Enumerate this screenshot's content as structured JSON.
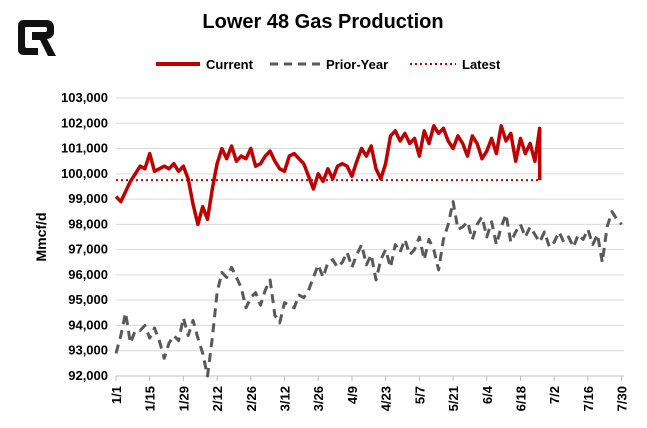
{
  "chart_data": {
    "type": "line",
    "title": "Lower 48 Gas Production",
    "ylabel": "Mmcf/d",
    "xlabel": "",
    "ylim": [
      92000,
      103000
    ],
    "yticks": [
      92000,
      93000,
      94000,
      95000,
      96000,
      97000,
      98000,
      99000,
      100000,
      101000,
      102000,
      103000
    ],
    "ytick_labels": [
      "92,000",
      "93,000",
      "94,000",
      "95,000",
      "96,000",
      "97,000",
      "98,000",
      "99,000",
      "100,000",
      "101,000",
      "102,000",
      "103,000"
    ],
    "xlim": [
      1,
      212
    ],
    "xtick_days": [
      1,
      15,
      29,
      43,
      57,
      71,
      85,
      99,
      113,
      127,
      141,
      155,
      169,
      183,
      197,
      211
    ],
    "xtick_labels": [
      "1/1",
      "1/15",
      "1/29",
      "2/12",
      "2/26",
      "3/12",
      "3/26",
      "4/9",
      "4/23",
      "5/7",
      "5/21",
      "6/4",
      "6/18",
      "7/2",
      "7/16",
      "7/30"
    ],
    "grid": true,
    "legend_position": "top",
    "series": [
      {
        "name": "Current",
        "style": "solid",
        "color": "#c00000",
        "x": [
          1,
          3,
          5,
          7,
          9,
          11,
          13,
          15,
          17,
          19,
          21,
          23,
          25,
          27,
          29,
          31,
          33,
          35,
          37,
          39,
          41,
          43,
          45,
          47,
          49,
          51,
          53,
          55,
          57,
          59,
          61,
          63,
          65,
          67,
          69,
          71,
          73,
          75,
          77,
          79,
          81,
          83,
          85,
          87,
          89,
          91,
          93,
          95,
          97,
          99,
          101,
          103,
          105,
          107,
          109,
          111,
          113,
          115,
          117,
          119,
          121,
          123,
          125,
          127,
          129,
          131,
          133,
          135,
          137,
          139,
          141,
          143,
          145,
          147,
          149,
          151,
          153,
          155,
          157,
          159,
          161,
          163,
          165,
          167,
          169,
          171,
          173,
          175,
          177
        ],
        "values": [
          99100,
          98900,
          99300,
          99700,
          100000,
          100300,
          100200,
          100800,
          100100,
          100200,
          100300,
          100200,
          100400,
          100100,
          100300,
          99800,
          98800,
          98000,
          98700,
          98200,
          99400,
          100400,
          101000,
          100600,
          101100,
          100500,
          100700,
          100600,
          101000,
          100300,
          100400,
          100700,
          100900,
          100500,
          100200,
          100100,
          100700,
          100800,
          100600,
          100400,
          99900,
          99400,
          100000,
          99700,
          100200,
          99800,
          100300,
          100400,
          100300,
          99900,
          100500,
          101000,
          100700,
          101100,
          100200,
          99800,
          100400,
          101500,
          101700,
          101300,
          101600,
          101200,
          101400,
          100700,
          101700,
          101200,
          101900,
          101600,
          101800,
          101300,
          101000,
          101500,
          101200,
          100700,
          101500,
          101200,
          100600,
          100900,
          101400,
          100800,
          101900,
          101300,
          101600,
          100500,
          101400,
          100800,
          101200,
          100500,
          101800
        ]
      },
      {
        "name": "Prior-Year",
        "style": "dashed",
        "color": "#595959",
        "x": [
          1,
          3,
          5,
          7,
          9,
          11,
          13,
          15,
          17,
          19,
          21,
          23,
          25,
          27,
          29,
          31,
          33,
          35,
          37,
          39,
          41,
          43,
          45,
          47,
          49,
          51,
          53,
          55,
          57,
          59,
          61,
          63,
          65,
          67,
          69,
          71,
          73,
          75,
          77,
          79,
          81,
          83,
          85,
          87,
          89,
          91,
          93,
          95,
          97,
          99,
          101,
          103,
          105,
          107,
          109,
          111,
          113,
          115,
          117,
          119,
          121,
          123,
          125,
          127,
          129,
          131,
          133,
          135,
          137,
          139,
          141,
          143,
          145,
          147,
          149,
          151,
          153,
          155,
          157,
          159,
          161,
          163,
          165,
          167,
          169,
          171,
          173,
          175,
          177,
          179,
          181,
          183,
          185,
          187,
          189,
          191,
          193,
          195,
          197,
          199,
          201,
          203,
          205,
          207,
          209,
          211
        ],
        "values": [
          92900,
          93600,
          94500,
          93300,
          93800,
          93800,
          94000,
          93500,
          93900,
          93400,
          92700,
          93300,
          93600,
          93400,
          94300,
          93600,
          94200,
          93500,
          92900,
          92000,
          93500,
          95300,
          96100,
          95900,
          96300,
          95900,
          95500,
          94700,
          95100,
          95300,
          94800,
          95400,
          95800,
          94400,
          94100,
          94900,
          94800,
          94700,
          95200,
          95100,
          95400,
          95900,
          96400,
          95900,
          96500,
          96600,
          96300,
          96500,
          96900,
          96300,
          96800,
          97200,
          96400,
          96800,
          95800,
          96600,
          97000,
          96300,
          97200,
          96900,
          97400,
          96800,
          97000,
          97500,
          96600,
          97400,
          97000,
          96200,
          97400,
          98000,
          98900,
          97800,
          97900,
          98100,
          97400,
          98000,
          98300,
          97500,
          98100,
          97200,
          97900,
          98400,
          97300,
          97700,
          98000,
          97500,
          97900,
          97600,
          97300,
          97700,
          97100,
          97300,
          97700,
          97300,
          97500,
          97100,
          97600,
          97400,
          97800,
          97200,
          97600,
          96500,
          97900,
          98500,
          98200,
          98000
        ]
      },
      {
        "name": "Latest",
        "style": "dotted",
        "color": "#c00000",
        "constant": 99750
      }
    ]
  }
}
